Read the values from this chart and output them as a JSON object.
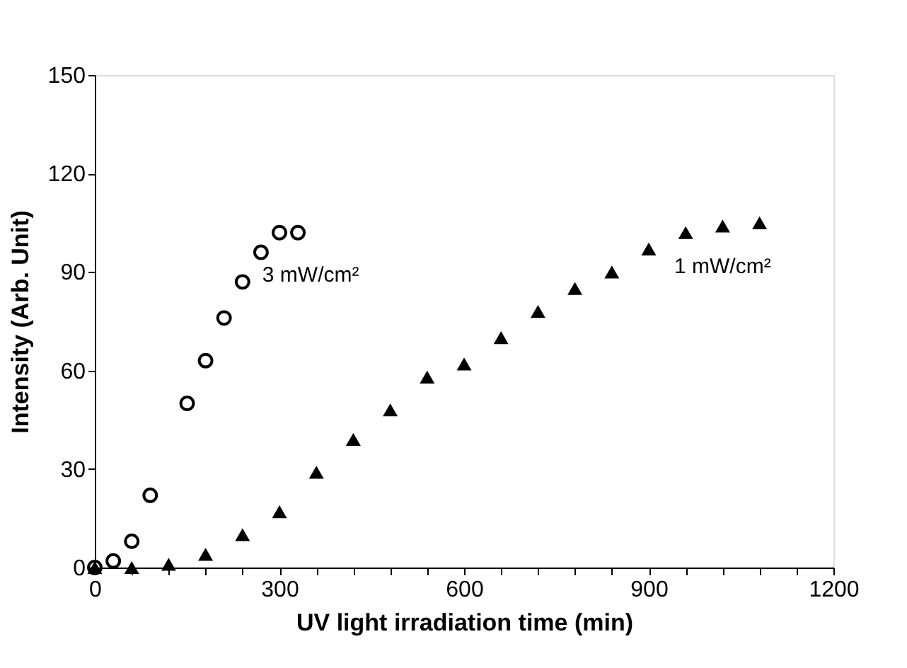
{
  "chart_data": {
    "type": "scatter",
    "xlabel": "UV light irradiation time (min)",
    "ylabel": "Intensity (Arb. Unit)",
    "xlim": [
      0,
      1200
    ],
    "ylim": [
      0,
      150
    ],
    "xticks": [
      0,
      {
        "value": 60,
        "label": null
      },
      {
        "value": 120,
        "label": null
      },
      {
        "value": 180,
        "label": null
      },
      {
        "value": 240,
        "label": null
      },
      300,
      {
        "value": 360,
        "label": null
      },
      {
        "value": 420,
        "label": null
      },
      {
        "value": 480,
        "label": null
      },
      {
        "value": 540,
        "label": null
      },
      600,
      {
        "value": 660,
        "label": null
      },
      {
        "value": 720,
        "label": null
      },
      {
        "value": 780,
        "label": null
      },
      {
        "value": 840,
        "label": null
      },
      900,
      {
        "value": 960,
        "label": null
      },
      {
        "value": 1020,
        "label": null
      },
      {
        "value": 1080,
        "label": null
      },
      {
        "value": 1140,
        "label": null
      },
      1200
    ],
    "yticks": [
      0,
      30,
      60,
      90,
      120,
      150
    ],
    "grid": false,
    "series": [
      {
        "name": "3 mW/cm²",
        "color": "#000000",
        "marker": "circle",
        "x": [
          0,
          30,
          60,
          90,
          150,
          180,
          210,
          240,
          270,
          300,
          330
        ],
        "values": [
          0,
          2,
          8,
          22,
          50,
          63,
          76,
          87,
          96,
          102,
          102
        ]
      },
      {
        "name": "1 mW/cm²",
        "color": "#000000",
        "marker": "triangle",
        "x": [
          0,
          60,
          120,
          180,
          240,
          300,
          360,
          420,
          480,
          540,
          600,
          660,
          720,
          780,
          840,
          900,
          960,
          1020,
          1080
        ],
        "values": [
          0,
          0,
          1,
          4,
          10,
          17,
          29,
          39,
          48,
          58,
          62,
          70,
          78,
          85,
          90,
          97,
          102,
          104,
          105
        ]
      }
    ]
  }
}
